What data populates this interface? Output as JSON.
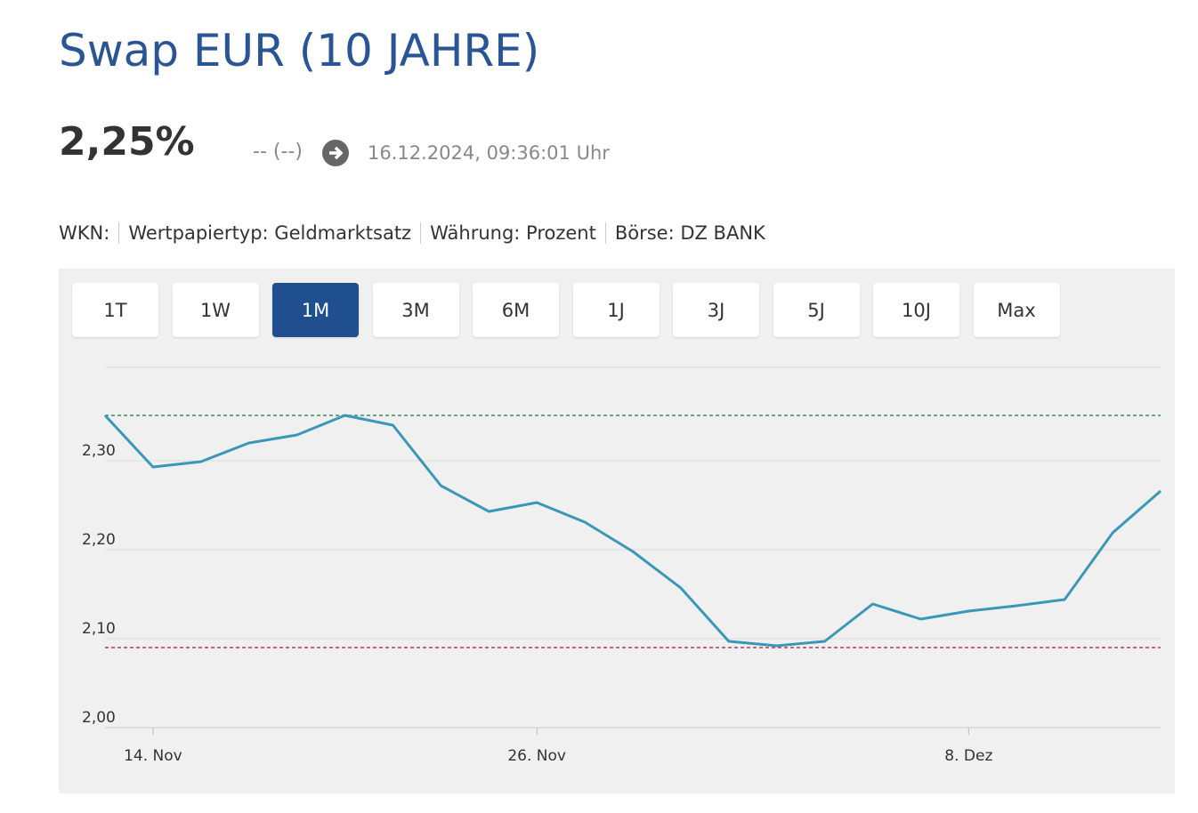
{
  "title": "Swap EUR (10 JAHRE)",
  "price": "2,25%",
  "change": "-- (--)",
  "timestamp": "16.12.2024, 09:36:01 Uhr",
  "info": [
    "WKN:",
    "Wertpapiertyp: Geldmarktsatz",
    "Währung: Prozent",
    "Börse: DZ BANK"
  ],
  "ranges": [
    "1T",
    "1W",
    "1M",
    "3M",
    "6M",
    "1J",
    "3J",
    "5J",
    "10J",
    "Max"
  ],
  "active_range": "1M",
  "chart_data": {
    "type": "line",
    "categories": [
      null,
      "14. Nov",
      null,
      null,
      null,
      null,
      null,
      null,
      null,
      "26. Nov",
      null,
      null,
      null,
      null,
      null,
      null,
      null,
      null,
      "8. Dez",
      null,
      null,
      null,
      null
    ],
    "series": [
      {
        "color": "#3b97b8",
        "values": [
          2.351,
          2.293,
          2.299,
          2.32,
          2.329,
          2.351,
          2.34,
          2.272,
          2.243,
          2.253,
          2.231,
          2.198,
          2.157,
          2.097,
          2.092,
          2.097,
          2.139,
          2.122,
          2.131,
          2.137,
          2.144,
          2.219,
          2.266
        ]
      }
    ],
    "reference_lines": [
      {
        "value": 2.351,
        "color": "#3a8a5a"
      },
      {
        "value": 2.09,
        "color": "#c0384c"
      }
    ],
    "ylim": [
      2.0,
      2.4
    ],
    "yticks": [
      {
        "value": 2.0,
        "label": "2,00"
      },
      {
        "value": 2.1,
        "label": "2,10"
      },
      {
        "value": 2.2,
        "label": "2,20"
      },
      {
        "value": 2.3,
        "label": "2,30"
      }
    ],
    "grid": true
  }
}
